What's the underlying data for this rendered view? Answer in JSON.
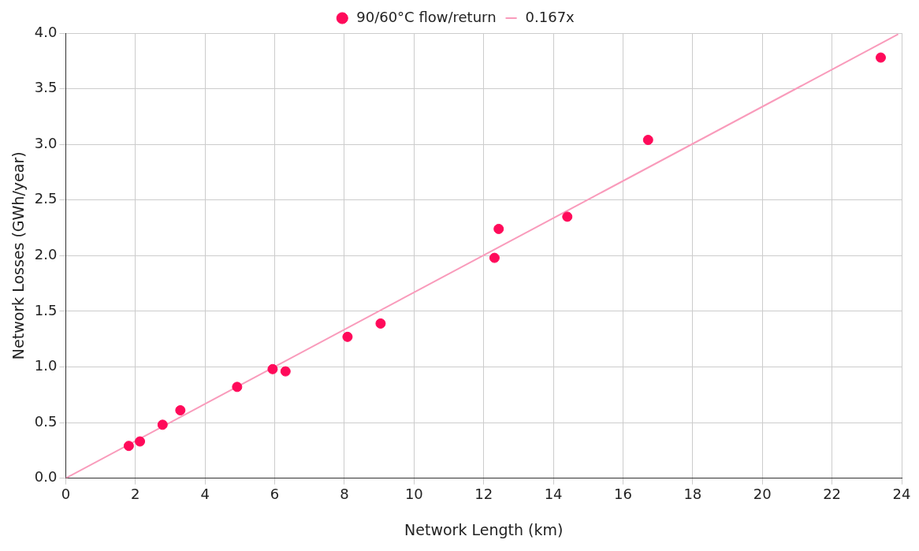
{
  "chart_data": {
    "type": "scatter",
    "xlabel": "Network Length (km)",
    "ylabel": "Network Losses (GWh/year)",
    "xlim": [
      0,
      24
    ],
    "xticks": [
      0,
      2,
      4,
      6,
      8,
      10,
      12,
      14,
      16,
      18,
      20,
      22,
      24
    ],
    "ylim": [
      0,
      4
    ],
    "yticks": [
      {
        "value": 0,
        "label": "0.0"
      },
      {
        "value": 0.5,
        "label": "0.5"
      },
      {
        "value": 1,
        "label": "1.0"
      },
      {
        "value": 1.5,
        "label": "1.5"
      },
      {
        "value": 2,
        "label": "2.0"
      },
      {
        "value": 2.5,
        "label": "2.5"
      },
      {
        "value": 3,
        "label": "3.0"
      },
      {
        "value": 3.5,
        "label": "3.5"
      },
      {
        "value": 4,
        "label": "4.0"
      }
    ],
    "grid": true,
    "legend": "top",
    "series": [
      {
        "name": "90/60°C flow/return",
        "type": "scatter",
        "marker": "circle",
        "color": "#ff0a5a",
        "x": [
          1.81,
          2.13,
          2.78,
          3.29,
          4.92,
          5.94,
          6.31,
          8.09,
          9.04,
          12.31,
          12.43,
          14.4,
          16.72,
          23.4
        ],
        "values": [
          0.29,
          0.33,
          0.48,
          0.61,
          0.82,
          0.98,
          0.96,
          1.27,
          1.39,
          1.98,
          2.24,
          2.35,
          3.04,
          3.78
        ]
      },
      {
        "name": "0.167x",
        "type": "line",
        "color": "#f99bbb",
        "x": [
          0,
          23.9
        ],
        "values": [
          0,
          3.99
        ]
      }
    ]
  }
}
